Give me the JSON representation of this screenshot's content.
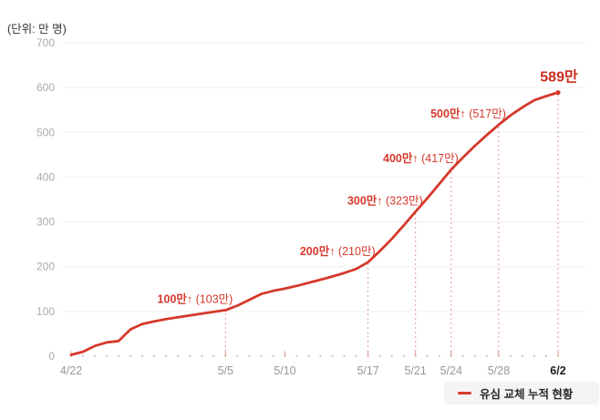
{
  "chart_data": {
    "type": "line",
    "unit_label": "(단위: 만 명)",
    "grid": "horizontal",
    "y_axis": {
      "min": 0,
      "max": 700,
      "ticks": [
        0,
        100,
        200,
        300,
        400,
        500,
        600,
        700
      ]
    },
    "x_axis": {
      "start_date": "4/22",
      "end_date": "6/2",
      "total_days": 41,
      "tick_labels": [
        {
          "label": "4/22",
          "day": 0,
          "emphasis": false
        },
        {
          "label": "5/5",
          "day": 13,
          "emphasis": false
        },
        {
          "label": "5/10",
          "day": 18,
          "emphasis": false
        },
        {
          "label": "5/17",
          "day": 25,
          "emphasis": false
        },
        {
          "label": "5/21",
          "day": 29,
          "emphasis": false
        },
        {
          "label": "5/24",
          "day": 32,
          "emphasis": false
        },
        {
          "label": "5/28",
          "day": 36,
          "emphasis": false
        },
        {
          "label": "6/2",
          "day": 41,
          "emphasis": true
        }
      ]
    },
    "series": [
      {
        "name": "유심 교체 누적 현황",
        "values": [
          3,
          10,
          23,
          31,
          34,
          60,
          72,
          78,
          83,
          87,
          91,
          95,
          99,
          103,
          113,
          126,
          139,
          146,
          151,
          157,
          164,
          171,
          178,
          186,
          195,
          210,
          235,
          262,
          292,
          323,
          353,
          385,
          417,
          444,
          470,
          494,
          517,
          538,
          556,
          572,
          581,
          589
        ]
      }
    ],
    "annotations": [
      {
        "bold": "100만↑",
        "rest": " (103만)",
        "day": 13,
        "value": 103,
        "final": false
      },
      {
        "bold": "200만↑",
        "rest": " (210만)",
        "day": 25,
        "value": 210,
        "final": false
      },
      {
        "bold": "300만↑",
        "rest": " (323만)",
        "day": 29,
        "value": 323,
        "final": false
      },
      {
        "bold": "400만↑",
        "rest": " (417만)",
        "day": 32,
        "value": 417,
        "final": false
      },
      {
        "bold": "500만↑",
        "rest": " (517만)",
        "day": 36,
        "value": 517,
        "final": false
      },
      {
        "bold": "589만",
        "rest": "",
        "day": 41,
        "value": 589,
        "final": true
      }
    ],
    "legend": {
      "label": "유심 교체 누적 현황",
      "position": "bottom-right"
    },
    "colors": {
      "line": "#d5392c",
      "annotation": "#d5392c",
      "final_annotation": "#c92d1e",
      "dashed_guide": "#dd9b8f",
      "axis_baseline": "#e3beb7",
      "gridline": "#efefef",
      "y_label": "#ababaf",
      "x_label": "#97979b",
      "x_label_emphasis": "#1c1c1e",
      "legend_bg": "#f4f4f5",
      "legend_text": "#28292d"
    }
  }
}
